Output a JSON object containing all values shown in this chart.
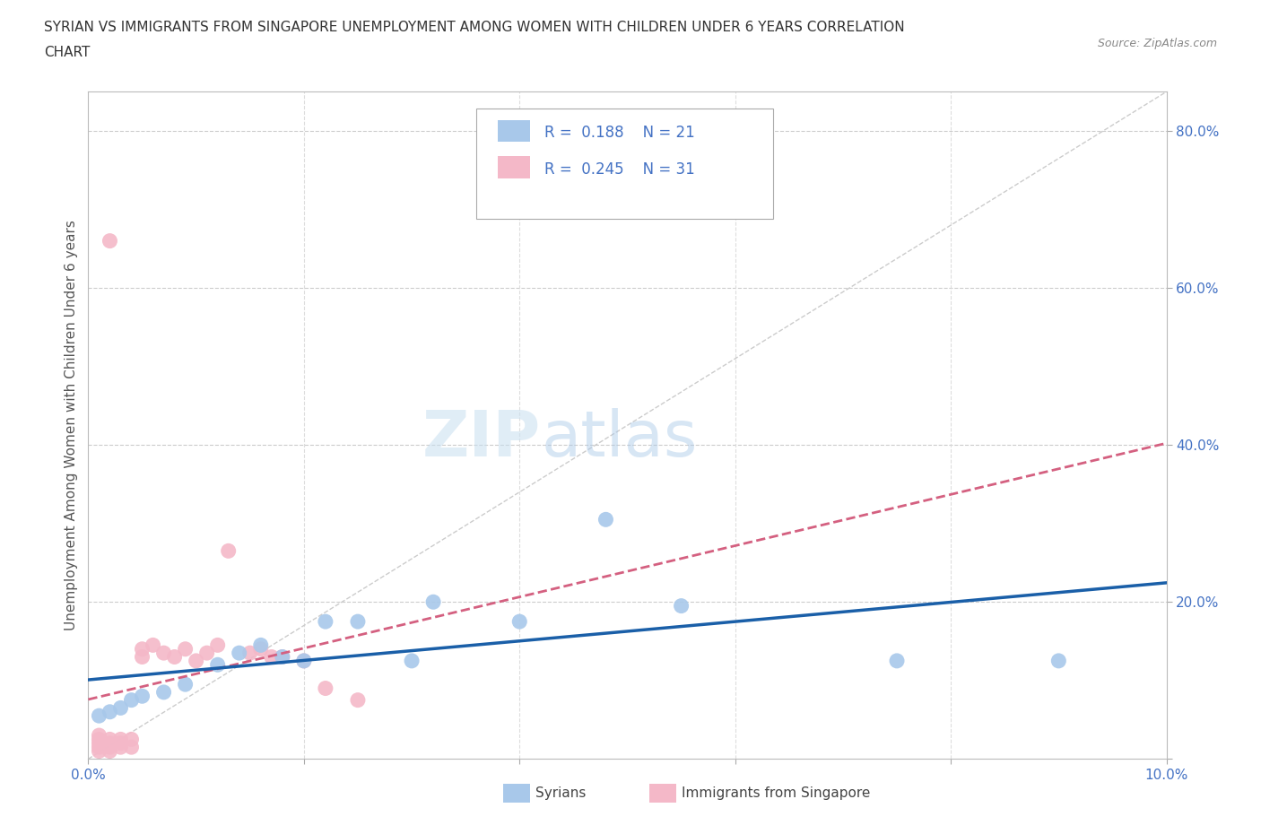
{
  "title_line1": "SYRIAN VS IMMIGRANTS FROM SINGAPORE UNEMPLOYMENT AMONG WOMEN WITH CHILDREN UNDER 6 YEARS CORRELATION",
  "title_line2": "CHART",
  "source": "Source: ZipAtlas.com",
  "ylabel": "Unemployment Among Women with Children Under 6 years",
  "xmin": 0.0,
  "xmax": 0.1,
  "ymin": 0.0,
  "ymax": 0.85,
  "syrians_x": [
    0.001,
    0.002,
    0.003,
    0.004,
    0.005,
    0.007,
    0.009,
    0.012,
    0.014,
    0.016,
    0.018,
    0.02,
    0.022,
    0.025,
    0.03,
    0.032,
    0.04,
    0.048,
    0.055,
    0.075,
    0.09
  ],
  "syrians_y": [
    0.055,
    0.06,
    0.065,
    0.075,
    0.08,
    0.085,
    0.095,
    0.12,
    0.135,
    0.145,
    0.13,
    0.125,
    0.175,
    0.175,
    0.125,
    0.2,
    0.175,
    0.305,
    0.195,
    0.125,
    0.125
  ],
  "singapore_x": [
    0.001,
    0.001,
    0.001,
    0.001,
    0.001,
    0.002,
    0.002,
    0.002,
    0.002,
    0.003,
    0.003,
    0.003,
    0.004,
    0.004,
    0.005,
    0.005,
    0.006,
    0.007,
    0.008,
    0.009,
    0.01,
    0.011,
    0.012,
    0.013,
    0.015,
    0.016,
    0.017,
    0.018,
    0.02,
    0.022,
    0.025
  ],
  "singapore_y": [
    0.025,
    0.03,
    0.02,
    0.015,
    0.01,
    0.025,
    0.02,
    0.015,
    0.01,
    0.025,
    0.02,
    0.015,
    0.025,
    0.015,
    0.13,
    0.14,
    0.145,
    0.135,
    0.13,
    0.14,
    0.125,
    0.135,
    0.145,
    0.265,
    0.135,
    0.14,
    0.13,
    0.13,
    0.125,
    0.09,
    0.075
  ],
  "singapore_outlier_x": [
    0.002
  ],
  "singapore_outlier_y": [
    0.66
  ],
  "syrian_R": 0.188,
  "syrian_N": 21,
  "singapore_R": 0.245,
  "singapore_N": 31,
  "blue_color": "#a8c8ea",
  "pink_color": "#f4b8c8",
  "blue_line_color": "#1a5fa8",
  "pink_line_color": "#d46080",
  "diag_color": "#cccccc",
  "watermark_zip": "ZIP",
  "watermark_atlas": "atlas",
  "background_color": "#ffffff"
}
